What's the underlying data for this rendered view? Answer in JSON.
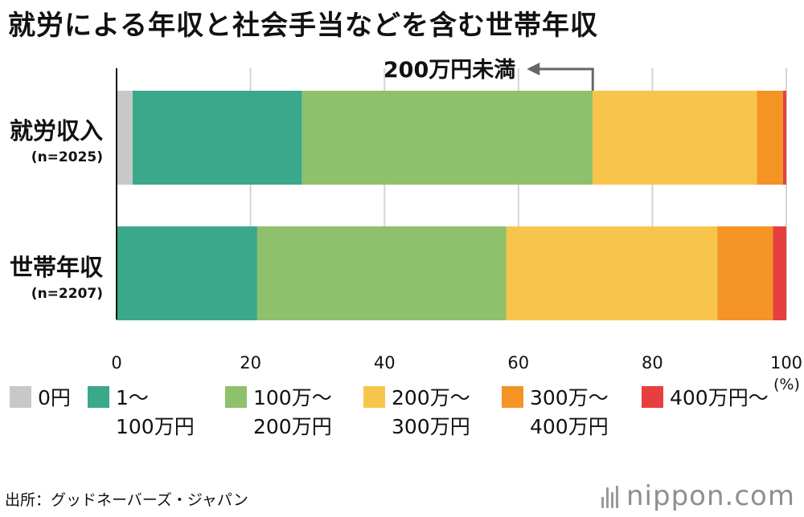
{
  "title": "就労による年収と社会手当などを含む世帯年収",
  "chart_data": {
    "type": "bar",
    "orientation": "horizontal",
    "stacked": true,
    "categories": [
      {
        "name": "就労収入",
        "n_label": "(n=2025)"
      },
      {
        "name": "世帯年収",
        "n_label": "(n=2207)"
      }
    ],
    "series": [
      {
        "name": "0円",
        "color": "#c8c8c8",
        "values": [
          2.4,
          0
        ]
      },
      {
        "name": "1〜\n100万円",
        "color": "#3aa88a",
        "values": [
          25.3,
          21.0
        ]
      },
      {
        "name": "100万〜\n200万円",
        "color": "#8fc06c",
        "values": [
          43.4,
          37.2
        ]
      },
      {
        "name": "200万〜\n300万円",
        "color": "#f8c54c",
        "values": [
          24.5,
          31.5
        ]
      },
      {
        "name": "300万〜\n400万円",
        "color": "#f39425",
        "values": [
          3.9,
          8.3
        ]
      },
      {
        "name": "400万円〜",
        "color": "#e5403f",
        "values": [
          0.5,
          2.0
        ]
      }
    ],
    "xlim": [
      0,
      100
    ],
    "xticks": [
      "0",
      "20",
      "40",
      "60",
      "80",
      "100"
    ],
    "xunit": "(%)",
    "grid": true,
    "annotation": {
      "text": "200万円未満",
      "category_index": 0,
      "x_value": 71.1,
      "arrow": "left"
    }
  },
  "source": "出所：グッドネーバーズ・ジャパン",
  "brand": "nippon.com"
}
